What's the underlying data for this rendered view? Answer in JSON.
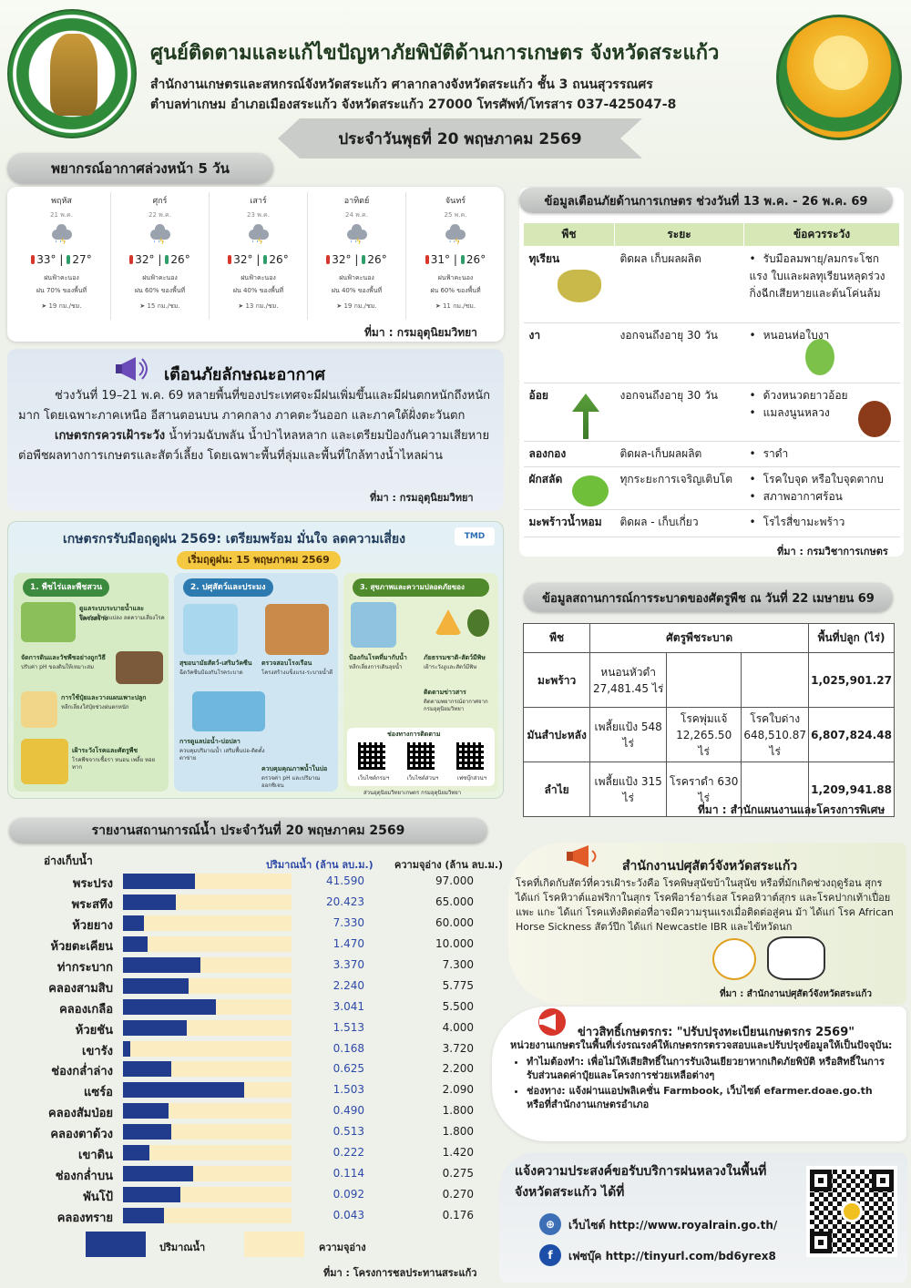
{
  "header": {
    "title": "ศูนย์ติดตามและแก้ไขปัญหาภัยพิบัติด้านการเกษตร จังหวัดสระแก้ว",
    "address_line1": "สำนักงานเกษตรและสหกรณ์จังหวัดสระแก้ว ศาลากลางจังหวัดสระแก้ว ชั้น 3 ถนนสุวรรณศร",
    "address_line2": "ตำบลท่าเกษม อำเภอเมืองสระแก้ว จังหวัดสระแก้ว 27000 โทรศัพท์/โทรสาร 037-425047-8",
    "date": "ประจำวันพุธที่ 20 พฤษภาคม 2569",
    "left_seal_text": "MINISTRY OF AGRICULTURE AND COOPERATIVES"
  },
  "forecast": {
    "title": "พยากรณ์อากาศล่วงหน้า 5 วัน",
    "source": "ที่มา : กรมอุตุนิยมวิทยา",
    "days": [
      {
        "name": "พฤหัส",
        "date": "21 พ.ค.",
        "tmax": "33°",
        "tmin": "27°",
        "cond": "ฝนฟ้าคะนอง",
        "rain": "ฝน 70% ของพื้นที่",
        "wind": "19 กม./ชม."
      },
      {
        "name": "ศุกร์",
        "date": "22 พ.ค.",
        "tmax": "32°",
        "tmin": "26°",
        "cond": "ฝนฟ้าคะนอง",
        "rain": "ฝน 60% ของพื้นที่",
        "wind": "15 กม./ชม."
      },
      {
        "name": "เสาร์",
        "date": "23 พ.ค.",
        "tmax": "32°",
        "tmin": "26°",
        "cond": "ฝนฟ้าคะนอง",
        "rain": "ฝน 40% ของพื้นที่",
        "wind": "13 กม./ชม."
      },
      {
        "name": "อาทิตย์",
        "date": "24 พ.ค.",
        "tmax": "32°",
        "tmin": "26°",
        "cond": "ฝนฟ้าคะนอง",
        "rain": "ฝน 40% ของพื้นที่",
        "wind": "19 กม./ชม."
      },
      {
        "name": "จันทร์",
        "date": "25 พ.ค.",
        "tmax": "31°",
        "tmin": "26°",
        "cond": "ฝนฟ้าคะนอง",
        "rain": "ฝน 60% ของพื้นที่",
        "wind": "11 กม./ชม."
      }
    ]
  },
  "weather_warning": {
    "title": "เตือนภัยลักษณะอากาศ",
    "para1": "ช่วงวันที่ 19–21 พ.ค. 69 หลายพื้นที่ของประเทศจะมีฝนเพิ่มขึ้นและมีฝนตกหนักถึงหนักมาก โดยเฉพาะภาคเหนือ อีสานตอนบน ภาคกลาง ภาคตะวันออก และภาคใต้ฝั่งตะวันตก",
    "para2_bold": "เกษตรกรควรเฝ้าระวัง",
    "para2": " น้ำท่วมฉับพลัน น้ำป่าไหลหลาก และเตรียมป้องกันความเสียหายต่อพืชผลทางการเกษตรและสัตว์เลี้ยง โดยเฉพาะพื้นที่ลุ่มและพื้นที่ใกล้ทางน้ำไหลผ่าน",
    "source": "ที่มา : กรมอุตุนิยมวิทยา"
  },
  "infographic": {
    "title": "เกษตรกรรับมือฤดูฝน 2569: เตรียมพร้อม มั่นใจ ลดความเสี่ยง",
    "logo": "TMD",
    "start_date": "เริ่มฤดูฝน: 15 พฤษภาคม 2569",
    "col1": {
      "heading": "1. พืชไร่และพืชสวน",
      "s1": "ดูแลระบบระบายน้ำและโครงสร้าง",
      "t1": "ป้องกันน้ำขังแปลง ลดความเสี่ยงโรค",
      "s2": "จัดการดินและวัชพืชอย่างถูกวิธี",
      "t2": "ปรับค่า pH ของดินให้เหมาะสม",
      "s3": "การใช้ปุ๋ยและวางแผนเพาะปลูก",
      "t3": "หลีกเลี่ยงใส่ปุ๋ยช่วงฝนตกหนัก",
      "s4": "เฝ้าระวังโรคและศัตรูพืช",
      "t4": "โรคพืชจากเชื้อรา หนอน เพลี้ย หอยทาก"
    },
    "col2": {
      "heading": "2. ปศุสัตว์และประมง",
      "s1": "สุขอนามัยสัตว์-เสริมวัคซีน",
      "t1": "ฉีดวัคซีนป้องกันโรคระบาด",
      "s2": "ตรวจสอบโรงเรือน",
      "t2": "โครงสร้างแข็งแรง-ระบายน้ำดี",
      "s3": "การดูแลบ่อน้ำ-บ่อปลา",
      "t3": "ควบคุมปริมาณน้ำ เสริมพื้นบ่อ-ติดตั้งตาข่าย",
      "s4": "ควบคุมคุณภาพน้ำในบ่อ",
      "t4": "ตรวจค่า pH และปริมาณออกซิเจน"
    },
    "col3": {
      "heading": "3. สุขภาพและความปลอดภัยของเกษตรกร",
      "s1": "ป้องกันโรคที่มากับน้ำ",
      "t1": "หลีกเลี่ยงการเดินลุยน้ำ",
      "s2": "ภัยธรรมชาติ-สัตว์มีพิษ",
      "t2": "เฝ้าระวังงูและสัตว์มีพิษ",
      "s3": "ติดตามข่าวสาร",
      "t3": "ติดตามพยากรณ์อากาศจากกรมอุตุนิยมวิทยา",
      "s4": "ช่องทางการติดตาม",
      "qr": [
        "เว็บไซต์กรมฯ",
        "เว็บไซต์ส่วนฯ",
        "เฟซบุ๊กส่วนฯ"
      ],
      "source": "ส่วนอุตุนิยมวิทยาเกษตร กรมอุตุนิยมวิทยา"
    }
  },
  "agri_warning": {
    "title": "ข้อมูลเตือนภัยด้านการเกษตร ช่วงวันที่ 13 พ.ค. - 26 พ.ค. 69",
    "headers": [
      "พืช",
      "ระยะ",
      "ข้อควรระวัง"
    ],
    "rows": [
      {
        "crop": "ทุเรียน",
        "stage": "ติดผล เก็บผลผลิต",
        "notes": [
          "รับมือลมพายุ/ลมกระโชกแรง ใบและผลทุเรียนหลุดร่วง กิ่งฉีกเสียหายและต้นโค่นล้ม"
        ]
      },
      {
        "crop": "งา",
        "stage": "งอกจนถึงอายุ 30 วัน",
        "notes": [
          "หนอนห่อใบงา"
        ]
      },
      {
        "crop": "อ้อย",
        "stage": "งอกจนถึงอายุ 30 วัน",
        "notes": [
          "ด้วงหนวดยาวอ้อย",
          "แมลงนูนหลวง"
        ]
      },
      {
        "crop": "ลองกอง",
        "stage": "ติดผล-เก็บผลผลิต",
        "notes": [
          "ราดำ"
        ]
      },
      {
        "crop": "ผักสลัด",
        "stage": "ทุกระยะการเจริญเติบโต",
        "notes": [
          "โรคใบจุด หรือใบจุดตากบ",
          "สภาพอากาศร้อน"
        ]
      },
      {
        "crop": "มะพร้าวน้ำหอม",
        "stage": "ติดผล - เก็บเกี่ยว",
        "notes": [
          "โรไรสี่ขามะพร้าว"
        ]
      }
    ],
    "source": "ที่มา : กรมวิชาการเกษตร"
  },
  "pest": {
    "title": "ข้อมูลสถานการณ์การระบาดของศัตรูพืช ณ วันที่ 22 เมษายน 69",
    "headers": [
      "พืช",
      "ศัตรูพืชระบาด",
      "พื้นที่ปลูก (ไร่)"
    ],
    "rows": [
      {
        "crop": "มะพร้าว",
        "p1": "หนอนหัวดำ 27,481.45 ไร่",
        "p2": "",
        "p3": "",
        "area": "1,025,901.27"
      },
      {
        "crop": "มันสำปะหลัง",
        "p1": "เพลี้ยแป้ง 548 ไร่",
        "p2": "โรคพุ่มแจ้ 12,265.50 ไร่",
        "p3": "โรคใบด่าง 648,510.87 ไร่",
        "area": "6,807,824.48"
      },
      {
        "crop": "ลำไย",
        "p1": "เพลี้ยแป้ง 315 ไร่",
        "p2": "โรคราดำ 630 ไร่",
        "p3": "",
        "area": "1,209,941.88"
      }
    ],
    "source": "ที่มา : สำนักแผนงานและโครงการพิเศษ"
  },
  "water": {
    "title": "รายงานสถานการณ์น้ำ ประจำวันที่ 20 พฤษภาคม 2569",
    "col_reservoir": "อ่างเก็บน้ำ",
    "col_volume": "ปริมาณน้ำ (ล้าน ลบ.ม.)",
    "col_capacity": "ความจุอ่าง (ล้าน ลบ.ม.)",
    "legend_volume": "ปริมาณน้ำ",
    "legend_capacity": "ความจุอ่าง",
    "source": "ที่มา : โครงการชลประทานสระแก้ว",
    "volume_color": "#213c8c",
    "capacity_color": "#fcecc2"
  },
  "chart_data": {
    "type": "bar",
    "title": "รายงานสถานการณ์น้ำ ประจำวันที่ 20 พฤษภาคม 2569",
    "categories": [
      "พระปรง",
      "พระสทึง",
      "ห้วยยาง",
      "ห้วยตะเคียน",
      "ท่ากระบาก",
      "คลองสามสิบ",
      "คลองเกลือ",
      "ห้วยชัน",
      "เขารัง",
      "ช่องกล่ำล่าง",
      "แซร์อ",
      "คลองสัมป่อย",
      "คลองตาด้วง",
      "เขาดิน",
      "ช่องกล่ำบน",
      "พันโป้",
      "คลองทราย"
    ],
    "series": [
      {
        "name": "ปริมาณน้ำ",
        "values": [
          41.59,
          20.423,
          7.33,
          1.47,
          3.37,
          2.24,
          3.041,
          1.513,
          0.168,
          0.625,
          1.503,
          0.49,
          0.513,
          0.222,
          0.114,
          0.092,
          0.043
        ],
        "labels": [
          "41.590",
          "20.423",
          "7.330",
          "1.470",
          "3.370",
          "2.240",
          "3.041",
          "1.513",
          "0.168",
          "0.625",
          "1.503",
          "0.490",
          "0.513",
          "0.222",
          "0.114",
          "0.092",
          "0.043"
        ]
      },
      {
        "name": "ความจุอ่าง",
        "values": [
          97.0,
          65.0,
          60.0,
          10.0,
          7.3,
          5.775,
          5.5,
          4.0,
          3.72,
          2.2,
          2.09,
          1.8,
          1.8,
          1.42,
          0.275,
          0.27,
          0.176
        ],
        "labels": [
          "97.000",
          "65.000",
          "60.000",
          "10.000",
          "7.300",
          "5.775",
          "5.500",
          "4.000",
          "3.720",
          "2.200",
          "2.090",
          "1.800",
          "1.800",
          "1.420",
          "0.275",
          "0.270",
          "0.176"
        ]
      }
    ],
    "xlabel": "ปริมาณน้ำ (ล้าน ลบ.ม.)",
    "ylabel": "อ่างเก็บน้ำ"
  },
  "livestock": {
    "title": "สำนักงานปศุสัตว์จังหวัดสระแก้ว",
    "text": "โรคที่เกิดกับสัตว์ที่ควรเฝ้าระวังคือ โรคพิษสุนัขบ้าในสุนัข หรือที่มักเกิดช่วงฤดูร้อน สุกร ได้แก่ โรคหิวาต์แอฟริกาในสุกร โรคพีอาร์อาร์เอส โรคอหิวาต์สุกร และโรคปากเท้าเปื่อย แพะ แกะ ได้แก่ โรคแท้งติดต่อที่อาจมีความรุนแรงเมื่อติดต่อสู่คน ม้า ได้แก่ โรค African Horse Sickness สัตว์ปีก ได้แก่ Newcastle IBR และไข้หวัดนก",
    "source": "ที่มา : สำนักงานปศุสัตว์จังหวัดสระแก้ว"
  },
  "news": {
    "title": "ข่าวสิทธิ์เกษตรกร: \"ปรับปรุงทะเบียนเกษตรกร 2569\"",
    "intro": "หน่วยงานเกษตรในพื้นที่เร่งรณรงค์ให้เกษตรกรตรวจสอบและปรับปรุงข้อมูลให้เป็นปัจจุบัน:",
    "b1": "ทำไมต้องทำ: เพื่อไม่ให้เสียสิทธิ์ในการรับเงินเยียวยาหากเกิดภัยพิบัติ หรือสิทธิ์ในการรับส่วนลดค่าปุ๋ยและโครงการช่วยเหลือต่างๆ",
    "b2": "ช่องทาง: แจ้งผ่านแอปพลิเคชั่น Farmbook, เว็บไซต์ efarmer.doae.go.th หรือที่สำนักงานเกษตรอำเภอ"
  },
  "royal_rain": {
    "title": "แจ้งความประสงค์ขอรับบริการฝนหลวงในพื้นที่จังหวัดสระแก้ว ได้ที่",
    "website": "เว็บไซต์ http://www.royalrain.go.th/",
    "facebook": "เฟซบุ๊ค http://tinyurl.com/bd6yrex8"
  }
}
